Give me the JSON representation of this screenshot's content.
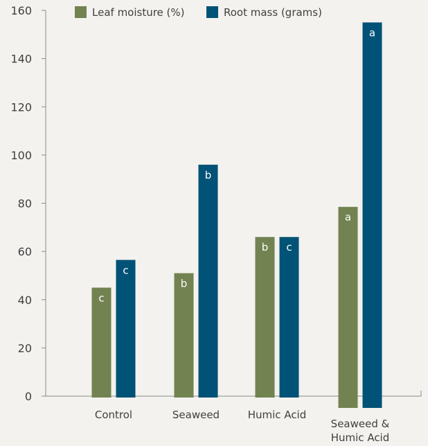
{
  "chart_data": {
    "type": "bar",
    "categories": [
      "Control",
      "Seaweed",
      "Humic Acid",
      "Seaweed & Humic Acid"
    ],
    "category_lines": [
      [
        "Control"
      ],
      [
        "Seaweed"
      ],
      [
        "Humic Acid"
      ],
      [
        "Seaweed &",
        "Humic Acid"
      ]
    ],
    "series": [
      {
        "name": "Leaf moisture (%)",
        "color": "#728251",
        "values": [
          45,
          51,
          66,
          78.5
        ],
        "labels": [
          "c",
          "b",
          "b",
          "a"
        ]
      },
      {
        "name": "Root mass (grams)",
        "color": "#005276",
        "values": [
          56.5,
          96,
          66,
          155
        ],
        "labels": [
          "c",
          "b",
          "c",
          "a"
        ]
      }
    ],
    "yticks": [
      0,
      20,
      40,
      60,
      80,
      100,
      120,
      140,
      160
    ],
    "ylim": [
      0,
      160
    ],
    "title": "",
    "xlabel": "",
    "ylabel": "",
    "grid": false,
    "legend_position": "top"
  }
}
